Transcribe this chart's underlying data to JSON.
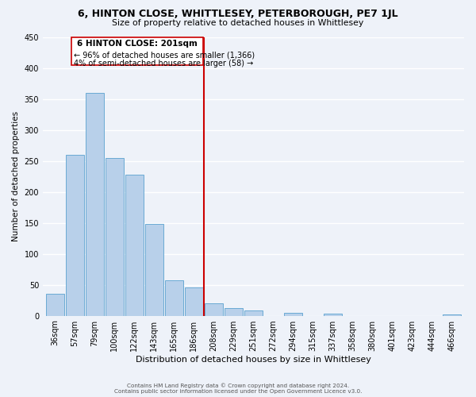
{
  "title": "6, HINTON CLOSE, WHITTLESEY, PETERBOROUGH, PE7 1JL",
  "subtitle": "Size of property relative to detached houses in Whittlesey",
  "xlabel": "Distribution of detached houses by size in Whittlesey",
  "ylabel": "Number of detached properties",
  "bar_labels": [
    "36sqm",
    "57sqm",
    "79sqm",
    "100sqm",
    "122sqm",
    "143sqm",
    "165sqm",
    "186sqm",
    "208sqm",
    "229sqm",
    "251sqm",
    "272sqm",
    "294sqm",
    "315sqm",
    "337sqm",
    "358sqm",
    "380sqm",
    "401sqm",
    "423sqm",
    "444sqm",
    "466sqm"
  ],
  "bar_values": [
    35,
    260,
    360,
    255,
    228,
    148,
    57,
    45,
    20,
    12,
    8,
    0,
    5,
    0,
    3,
    0,
    0,
    0,
    0,
    0,
    2
  ],
  "bar_color": "#b8d0ea",
  "bar_edge_color": "#6aaad4",
  "vline_x": 7.5,
  "vline_color": "#cc0000",
  "annotation_title": "6 HINTON CLOSE: 201sqm",
  "annotation_line1": "← 96% of detached houses are smaller (1,366)",
  "annotation_line2": "4% of semi-detached houses are larger (58) →",
  "annotation_box_color": "white",
  "annotation_box_edge": "#cc0000",
  "ylim": [
    0,
    450
  ],
  "yticks": [
    0,
    50,
    100,
    150,
    200,
    250,
    300,
    350,
    400,
    450
  ],
  "footer1": "Contains HM Land Registry data © Crown copyright and database right 2024.",
  "footer2": "Contains public sector information licensed under the Open Government Licence v3.0.",
  "bg_color": "#eef2f9",
  "grid_color": "#ffffff"
}
